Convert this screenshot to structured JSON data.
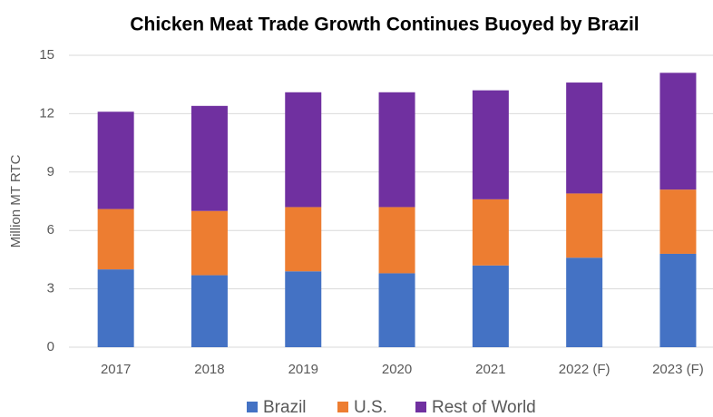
{
  "chart_data": {
    "type": "stacked_bar",
    "title": "Chicken Meat Trade Growth Continues Buoyed by Brazil",
    "y_label": "Million MT RTC",
    "categories": [
      "2017",
      "2018",
      "2019",
      "2020",
      "2021",
      "2022 (F)",
      "2023 (F)"
    ],
    "series": [
      {
        "name": "Brazil",
        "color": "#4472c4",
        "values": [
          4.0,
          3.7,
          3.9,
          3.8,
          4.2,
          4.6,
          4.8
        ]
      },
      {
        "name": "U.S.",
        "color": "#ed7d31",
        "values": [
          3.1,
          3.3,
          3.3,
          3.4,
          3.4,
          3.3,
          3.3
        ]
      },
      {
        "name": "Rest of World",
        "color": "#7030a0",
        "values": [
          5.0,
          5.4,
          5.9,
          5.9,
          5.6,
          5.7,
          6.0
        ]
      }
    ],
    "ylim": [
      0,
      15
    ],
    "yticks": [
      0,
      3,
      6,
      9,
      12,
      15
    ],
    "grid": true,
    "legend": "bottom"
  }
}
